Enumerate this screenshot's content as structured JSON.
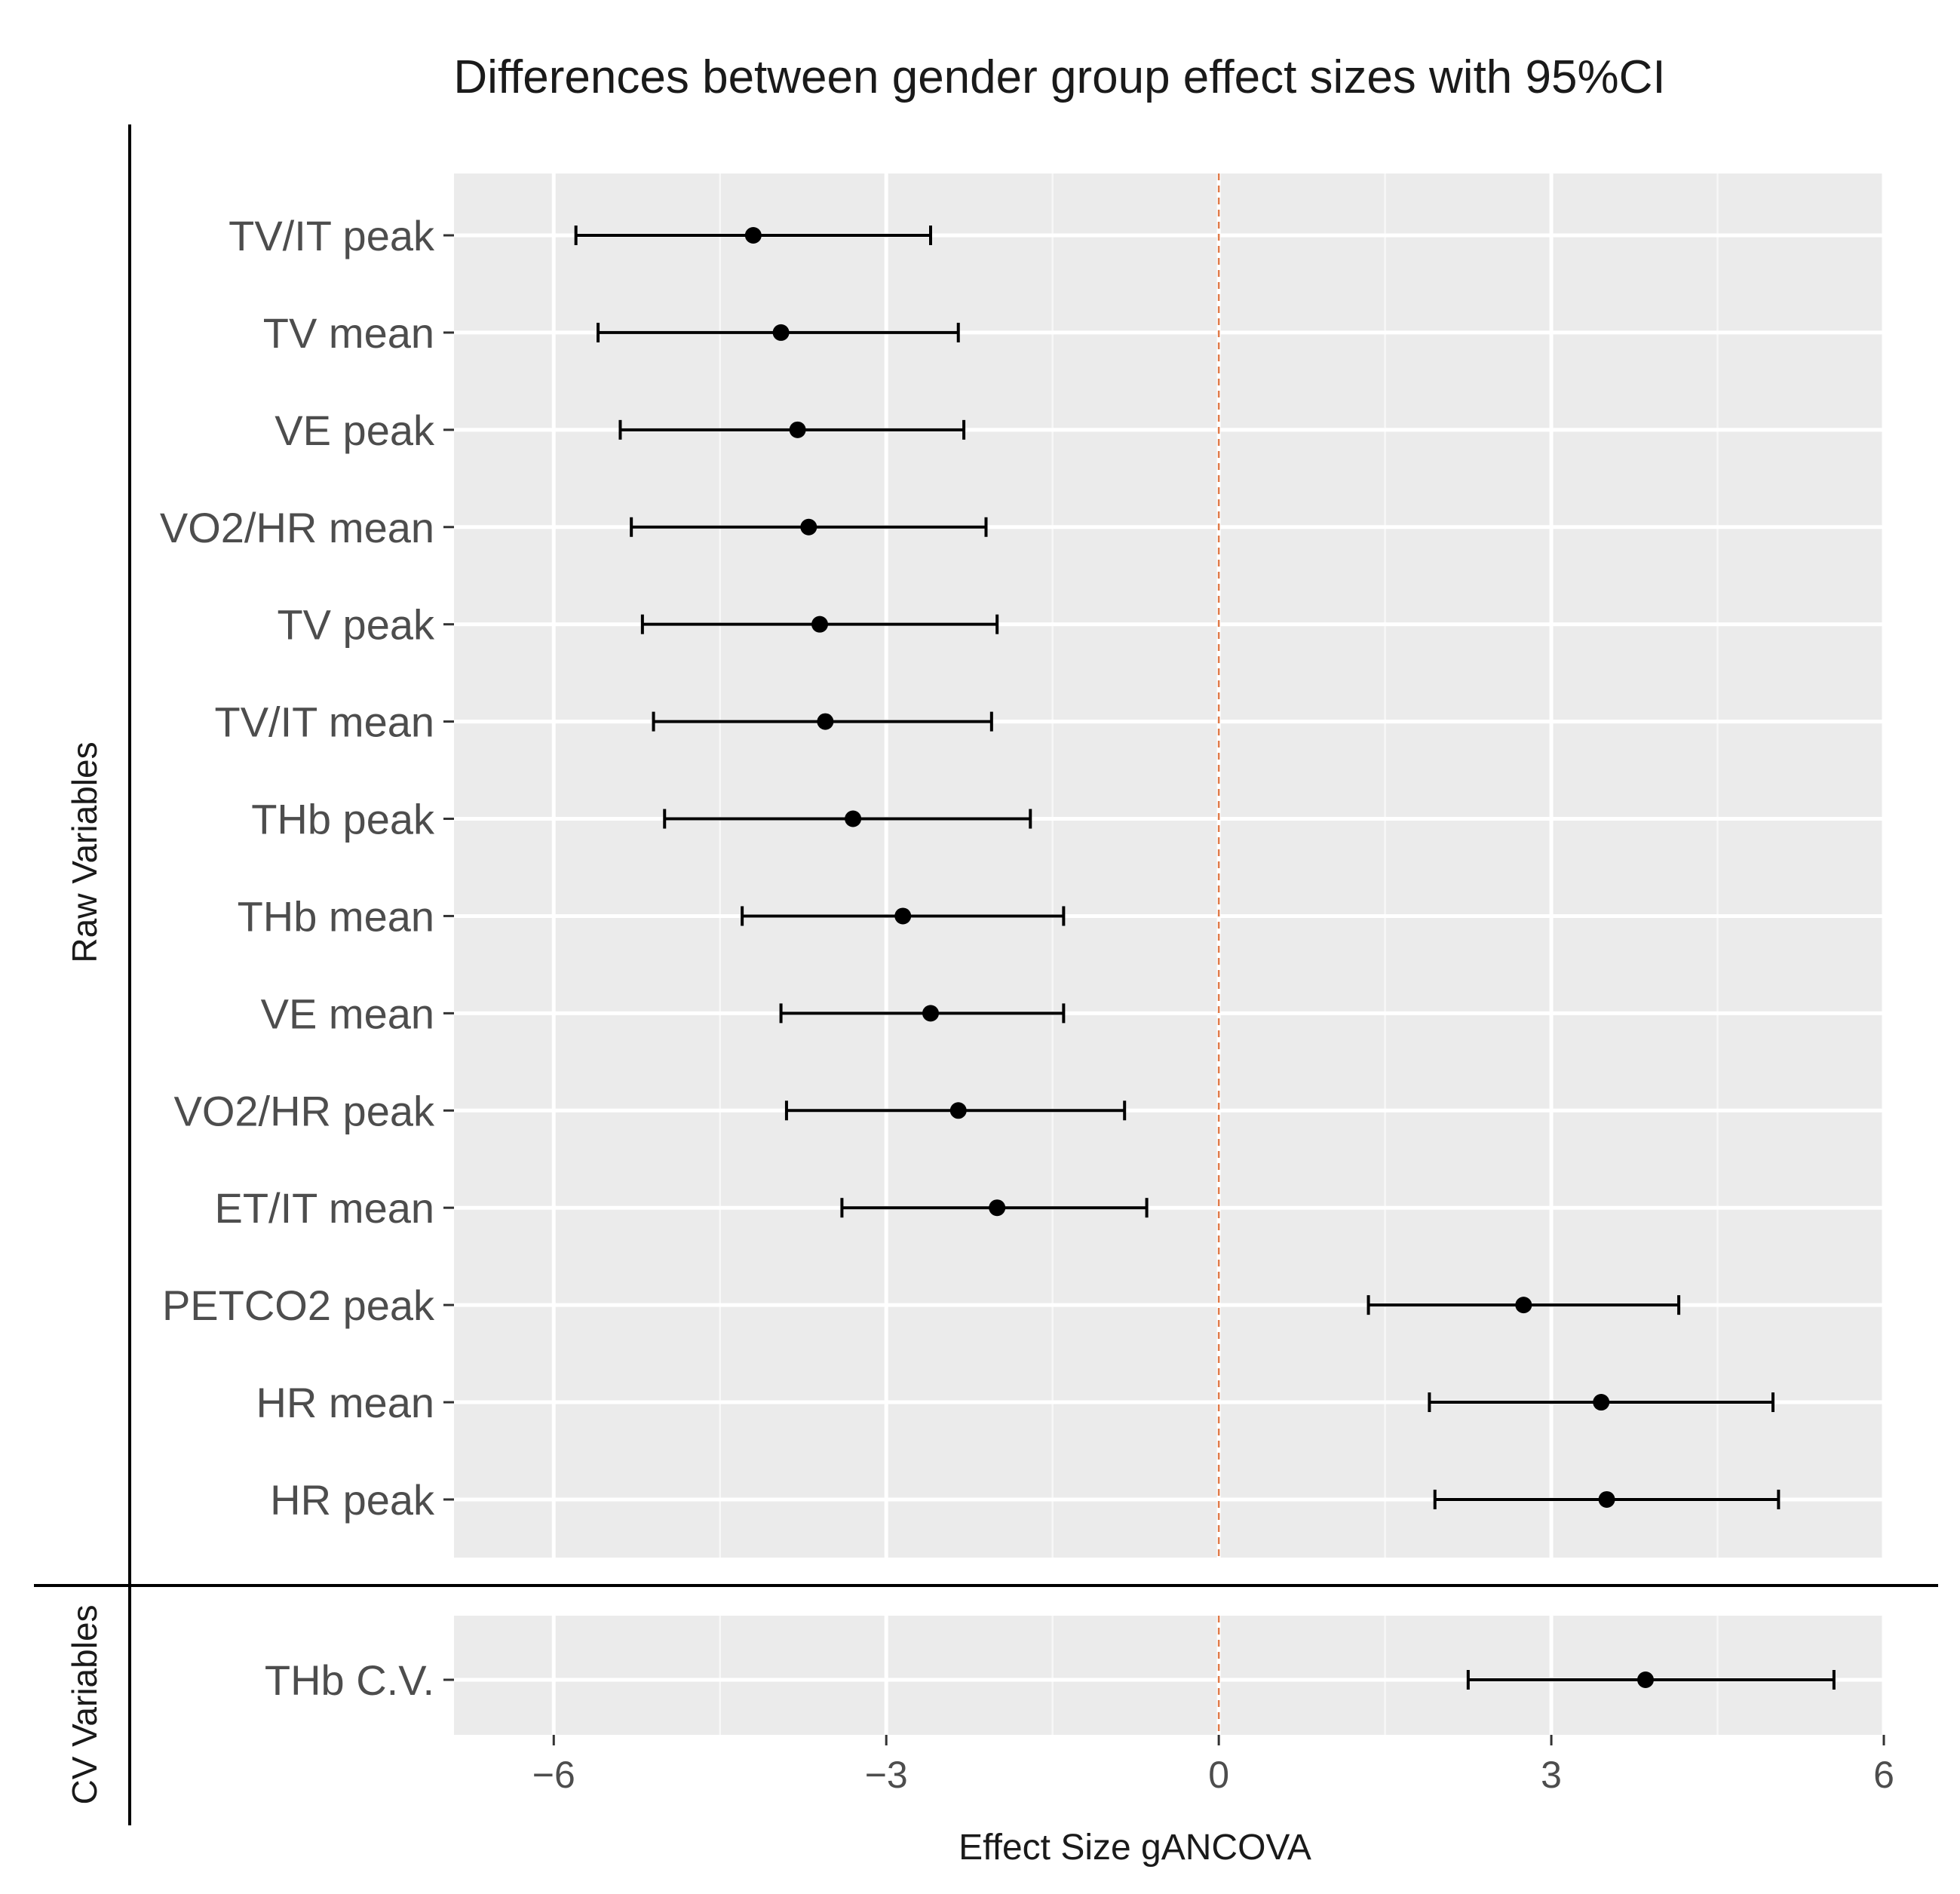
{
  "chart_data": {
    "type": "forest",
    "title": "Differences between gender group effect sizes with 95%CI",
    "xlabel": "Effect Size gANCOVA",
    "xlim": [
      -6.9,
      6
    ],
    "xticks": [
      -6,
      -3,
      0,
      3,
      6
    ],
    "xtick_labels": [
      "−6",
      "−3",
      "0",
      "3",
      "6"
    ],
    "reference_line": {
      "x": 0,
      "style": "dashed",
      "color": "#e07b4a"
    },
    "grid": true,
    "panel_background": "#ebebeb",
    "point_color": "#000000",
    "groups": [
      {
        "name": "Raw Variables",
        "rows": [
          {
            "label": "TV/IT peak",
            "estimate": -4.2,
            "lower": -5.8,
            "upper": -2.6
          },
          {
            "label": "TV mean",
            "estimate": -3.95,
            "lower": -5.6,
            "upper": -2.35
          },
          {
            "label": "VE peak",
            "estimate": -3.8,
            "lower": -5.4,
            "upper": -2.3
          },
          {
            "label": "VO2/HR mean",
            "estimate": -3.7,
            "lower": -5.3,
            "upper": -2.1
          },
          {
            "label": "TV peak",
            "estimate": -3.6,
            "lower": -5.2,
            "upper": -2.0
          },
          {
            "label": "TV/IT mean",
            "estimate": -3.55,
            "lower": -5.1,
            "upper": -2.05
          },
          {
            "label": "THb peak",
            "estimate": -3.3,
            "lower": -5.0,
            "upper": -1.7
          },
          {
            "label": "THb mean",
            "estimate": -2.85,
            "lower": -4.3,
            "upper": -1.4
          },
          {
            "label": "VE mean",
            "estimate": -2.6,
            "lower": -3.95,
            "upper": -1.4
          },
          {
            "label": "VO2/HR peak",
            "estimate": -2.35,
            "lower": -3.9,
            "upper": -0.85
          },
          {
            "label": "ET/IT mean",
            "estimate": -2.0,
            "lower": -3.4,
            "upper": -0.65
          },
          {
            "label": "PETCO2 peak",
            "estimate": 2.75,
            "lower": 1.35,
            "upper": 4.15
          },
          {
            "label": "HR mean",
            "estimate": 3.45,
            "lower": 1.9,
            "upper": 5.0
          },
          {
            "label": "HR peak",
            "estimate": 3.5,
            "lower": 1.95,
            "upper": 5.05
          }
        ]
      },
      {
        "name": "CV Variables",
        "rows": [
          {
            "label": "THb C.V.",
            "estimate": 3.85,
            "lower": 2.25,
            "upper": 5.55
          }
        ]
      }
    ]
  }
}
